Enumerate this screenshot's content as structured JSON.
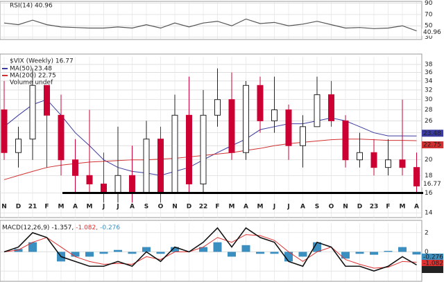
{
  "chart_data": [
    {
      "type": "line",
      "title": "RSI(14) 40.96",
      "ylim": [
        27,
        92
      ],
      "yticks": [
        90,
        70,
        50,
        30
      ],
      "grid": true,
      "series": [
        {
          "name": "RSI(14)",
          "color": "#555555",
          "values": [
            55,
            52,
            60,
            52,
            48,
            47,
            46,
            46,
            48,
            46,
            52,
            46,
            55,
            48,
            55,
            58,
            50,
            62,
            54,
            56,
            50,
            53,
            58,
            52,
            46,
            47,
            45,
            46,
            50,
            40.96
          ]
        }
      ]
    },
    {
      "type": "candlestick",
      "title": "$VIX (Weekly) 16.77",
      "log_scale": true,
      "grid": true,
      "x": [
        "N",
        "D",
        "21",
        "F",
        "M",
        "A",
        "M",
        "J",
        "J",
        "A",
        "S",
        "O",
        "N",
        "D",
        "22",
        "F",
        "M",
        "A",
        "M",
        "J",
        "J",
        "A",
        "S",
        "O",
        "N",
        "D",
        "23",
        "F",
        "M",
        "A"
      ],
      "open": [
        28,
        21,
        23,
        33,
        27,
        20,
        18,
        17,
        16,
        18,
        16,
        23,
        16,
        27,
        17,
        27,
        30,
        21,
        33,
        26,
        28,
        22,
        25,
        31,
        26,
        20,
        21,
        19,
        20,
        19
      ],
      "high": [
        34,
        25,
        37,
        33,
        31,
        23,
        28,
        21,
        25,
        22,
        26,
        25,
        31,
        35,
        32,
        37,
        36,
        34,
        35,
        35,
        29,
        27,
        35,
        34,
        27,
        24,
        23,
        23,
        30,
        21
      ],
      "low": [
        20,
        19,
        20,
        19,
        18,
        16,
        16,
        15,
        15,
        15,
        16,
        15,
        16,
        16,
        16,
        25,
        20,
        20,
        24,
        24,
        20,
        19,
        25,
        25,
        19,
        19,
        18,
        18,
        18,
        16
      ],
      "close": [
        21,
        23,
        33,
        27,
        20,
        18,
        17,
        16,
        18,
        16,
        23,
        16,
        27,
        17,
        27,
        30,
        21,
        33,
        26,
        28,
        22,
        25,
        31,
        26,
        20,
        21,
        19,
        20,
        19,
        16.77
      ],
      "up_color": "#222222",
      "down_color": "#cc0033",
      "ylim": [
        13.5,
        40
      ],
      "yticks": [
        14,
        16,
        18,
        20,
        22,
        24,
        26,
        28,
        30,
        32,
        34,
        36,
        38
      ],
      "support_level": 16,
      "support_color": "#000000",
      "volume_legend": "Volume undef",
      "series": [
        {
          "name": "MA(50) 23.48",
          "color": "#3a3aa0",
          "values": [
            25,
            27,
            29,
            30,
            27,
            24,
            22,
            20,
            19,
            18.5,
            18.3,
            18,
            18.5,
            19,
            20,
            21,
            22,
            23,
            24.5,
            25,
            25.5,
            25.5,
            26,
            26.5,
            26,
            25,
            24,
            23.5,
            23.5,
            23.48
          ]
        },
        {
          "name": "MA(200) 22.75",
          "color": "#d03030",
          "values": [
            17.5,
            18,
            18.5,
            19,
            19.3,
            19.5,
            19.7,
            19.8,
            19.9,
            20,
            20,
            20.1,
            20.2,
            20.4,
            20.6,
            20.8,
            21,
            21.3,
            21.6,
            22,
            22.3,
            22.5,
            22.7,
            22.9,
            23,
            23,
            22.9,
            22.8,
            22.8,
            22.75
          ]
        }
      ]
    },
    {
      "type": "macd",
      "title_parts": [
        "MACD(12,26,9)",
        "-1.357,",
        "-1.082,",
        "-0.276"
      ],
      "ylim": [
        -3,
        3
      ],
      "yticks": [
        2,
        0,
        -2
      ],
      "grid": true,
      "series": [
        {
          "name": "MACD",
          "color": "#111111",
          "values": [
            0,
            0.5,
            2,
            1.5,
            -0.5,
            -1,
            -1.5,
            -1.5,
            -1,
            -1.5,
            0,
            -1,
            0.5,
            0,
            1,
            2.5,
            0.5,
            2.5,
            1.5,
            1,
            -1,
            -1.5,
            1,
            0.5,
            -1.5,
            -1.5,
            -2,
            -1.5,
            -0.5,
            -1.357
          ]
        },
        {
          "name": "Signal",
          "color": "#e03030",
          "values": [
            0,
            0.2,
            1,
            1.5,
            0.5,
            -0.5,
            -1,
            -1.3,
            -1.2,
            -1.3,
            -0.5,
            -0.8,
            0,
            0,
            0.5,
            1.5,
            1,
            1.8,
            1.7,
            1.2,
            0,
            -1,
            0,
            0.5,
            -0.8,
            -1.3,
            -1.7,
            -1.6,
            -1,
            -1.082
          ]
        },
        {
          "name": "Histogram",
          "color": "#3b8fc0",
          "values": [
            0,
            0.3,
            1,
            0,
            -1,
            -0.5,
            -0.5,
            -0.2,
            0.2,
            -0.2,
            0.5,
            -0.2,
            0.5,
            0,
            0.5,
            1,
            -0.5,
            0.7,
            -0.2,
            -0.2,
            -1,
            -0.5,
            1,
            0,
            -0.7,
            -0.2,
            -0.3,
            0.1,
            0.5,
            -0.276
          ]
        }
      ]
    }
  ]
}
